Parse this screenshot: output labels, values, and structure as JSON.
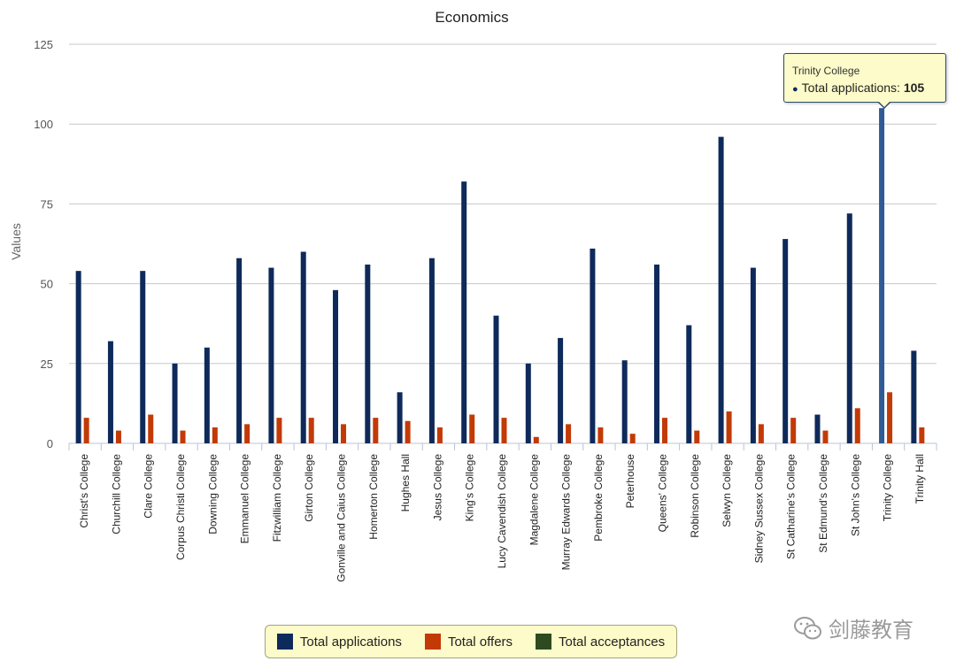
{
  "chart_data": {
    "type": "bar",
    "title": "Economics",
    "ylabel": "Values",
    "xlabel": "",
    "ylim": [
      0,
      125
    ],
    "yticks": [
      0,
      25,
      50,
      75,
      100,
      125
    ],
    "grid": true,
    "legend_position": "bottom",
    "categories": [
      "Christ's College",
      "Churchill College",
      "Clare College",
      "Corpus Christi College",
      "Downing College",
      "Emmanuel College",
      "Fitzwilliam College",
      "Girton College",
      "Gonville and Caius College",
      "Homerton College",
      "Hughes Hall",
      "Jesus College",
      "King's College",
      "Lucy Cavendish College",
      "Magdalene College",
      "Murray Edwards College",
      "Pembroke College",
      "Peterhouse",
      "Queens' College",
      "Robinson College",
      "Selwyn College",
      "Sidney Sussex College",
      "St Catharine's College",
      "St Edmund's College",
      "St John's College",
      "Trinity College",
      "Trinity Hall"
    ],
    "series": [
      {
        "name": "Total applications",
        "color": "#0e2a5a",
        "values": [
          54,
          32,
          54,
          25,
          30,
          58,
          55,
          60,
          48,
          56,
          16,
          58,
          82,
          40,
          25,
          33,
          61,
          26,
          56,
          37,
          96,
          55,
          64,
          9,
          72,
          105,
          29
        ]
      },
      {
        "name": "Total offers",
        "color": "#c23a06",
        "values": [
          8,
          4,
          9,
          4,
          5,
          6,
          8,
          8,
          6,
          8,
          7,
          5,
          9,
          8,
          2,
          6,
          5,
          3,
          8,
          4,
          10,
          6,
          8,
          4,
          11,
          16,
          5
        ]
      },
      {
        "name": "Total acceptances",
        "color": "#2e4a1f",
        "values": [
          0,
          0,
          0,
          0,
          0,
          0,
          0,
          0,
          0,
          0,
          0,
          0,
          0,
          0,
          0,
          0,
          0,
          0,
          0,
          0,
          0,
          0,
          0,
          0,
          0,
          0,
          0
        ]
      }
    ],
    "highlighted_series": "Total applications",
    "highlighted_category": "Trinity College"
  },
  "tooltip": {
    "title": "Trinity College",
    "series_label": "Total applications:",
    "value": "105"
  },
  "watermark": {
    "text": "剑藤教育",
    "icon": "wechat-icon"
  }
}
